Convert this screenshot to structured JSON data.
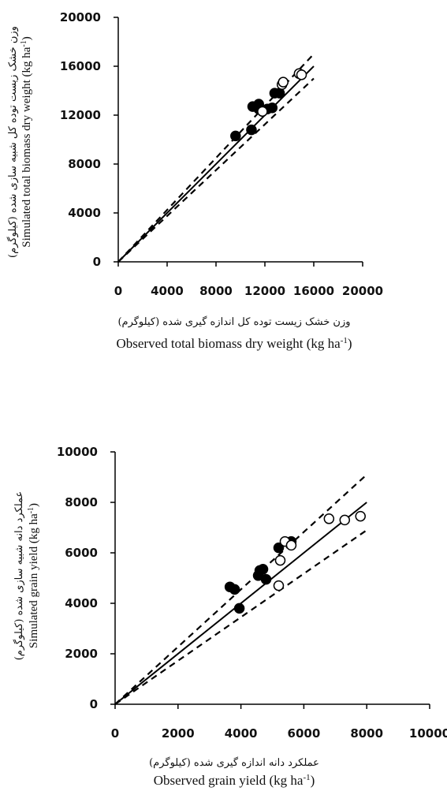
{
  "chart_data": [
    {
      "type": "scatter",
      "xlabel_fa": "وزن خشک زیست توده کل اندازه گیری شده (کیلوگرم)",
      "xlabel_en": "Observed total biomass dry weight (kg ha",
      "ylabel_fa": "وزن خشک زیست توده کل شبیه سازی شده (کیلوگرم)",
      "ylabel_en": "Simulated total biomass dry weight (kg ha",
      "unit_sup": "-1",
      "unit_close": ")",
      "xlim": [
        0,
        20000
      ],
      "ylim": [
        0,
        20000
      ],
      "x_ticks": [
        "0",
        "4000",
        "8000",
        "12000",
        "16000",
        "20000"
      ],
      "y_ticks": [
        "0",
        "4000",
        "8000",
        "12000",
        "16000",
        "20000"
      ],
      "grid": false,
      "lines": [
        {
          "style": "solid",
          "points": [
            [
              0,
              0
            ],
            [
              16000,
              16000
            ]
          ]
        },
        {
          "style": "dashed",
          "points": [
            [
              0,
              0
            ],
            [
              16000,
              17000
            ]
          ]
        },
        {
          "style": "dashed",
          "points": [
            [
              0,
              0
            ],
            [
              16000,
              15000
            ]
          ]
        }
      ],
      "series": [
        {
          "marker": "filled",
          "points": [
            [
              9600,
              10300
            ],
            [
              10900,
              10800
            ],
            [
              11000,
              12700
            ],
            [
              11500,
              12900
            ],
            [
              11500,
              12500
            ],
            [
              12200,
              12500
            ],
            [
              12600,
              12600
            ],
            [
              12800,
              13800
            ],
            [
              13200,
              13800
            ]
          ]
        },
        {
          "marker": "open",
          "points": [
            [
              11800,
              12300
            ],
            [
              13400,
              14500
            ],
            [
              13500,
              14700
            ],
            [
              14800,
              15400
            ],
            [
              15000,
              15300
            ]
          ]
        }
      ]
    },
    {
      "type": "scatter",
      "xlabel_fa": "عملکرد دانه اندازه گیری شده (کیلوگرم)",
      "xlabel_en": "Observed grain yield (kg ha",
      "ylabel_fa": "عملکرد دانه شبیه سازی شده (کیلوگرم)",
      "ylabel_en": "Simulated grain yield (kg ha",
      "unit_sup": "-1",
      "unit_close": ")",
      "xlim": [
        0,
        10000
      ],
      "ylim": [
        0,
        10000
      ],
      "x_ticks": [
        "0",
        "2000",
        "4000",
        "6000",
        "8000",
        "10000"
      ],
      "y_ticks": [
        "0",
        "2000",
        "4000",
        "6000",
        "8000",
        "10000"
      ],
      "grid": false,
      "lines": [
        {
          "style": "solid",
          "points": [
            [
              0,
              0
            ],
            [
              8000,
              8000
            ]
          ]
        },
        {
          "style": "dashed",
          "points": [
            [
              0,
              0
            ],
            [
              8000,
              9100
            ]
          ]
        },
        {
          "style": "dashed",
          "points": [
            [
              0,
              0
            ],
            [
              8000,
              6900
            ]
          ]
        }
      ],
      "series": [
        {
          "marker": "filled",
          "points": [
            [
              3650,
              4650
            ],
            [
              3800,
              4550
            ],
            [
              3950,
              3800
            ],
            [
              4550,
              5100
            ],
            [
              4600,
              5300
            ],
            [
              4700,
              5350
            ],
            [
              4800,
              4950
            ],
            [
              5200,
              6200
            ],
            [
              5600,
              6450
            ]
          ]
        },
        {
          "marker": "open",
          "points": [
            [
              5200,
              4700
            ],
            [
              5250,
              5700
            ],
            [
              5400,
              6450
            ],
            [
              5600,
              6300
            ],
            [
              6800,
              7350
            ],
            [
              7300,
              7300
            ],
            [
              7800,
              7450
            ]
          ]
        }
      ]
    }
  ]
}
